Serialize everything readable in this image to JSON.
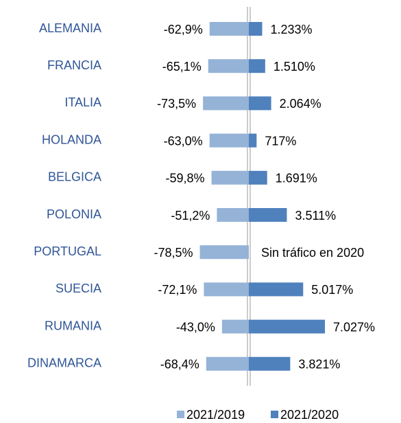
{
  "chart_data": {
    "type": "bar",
    "orientation": "horizontal",
    "categories": [
      "ALEMANIA",
      "FRANCIA",
      "ITALIA",
      "HOLANDA",
      "BELGICA",
      "POLONIA",
      "PORTUGAL",
      "SUECIA",
      "RUMANIA",
      "DINAMARCA"
    ],
    "xlim": [
      -100,
      0
    ],
    "x2lim": [
      0,
      7000
    ],
    "legend": "bottom",
    "series": [
      {
        "name": "2021/2019",
        "color": "#95b3d7",
        "axis": "x",
        "values": [
          -62.9,
          -65.1,
          -73.5,
          -63.0,
          -59.8,
          -51.2,
          -78.5,
          -72.1,
          -43.0,
          -68.4
        ],
        "value_labels": [
          "-62,9%",
          "-65,1%",
          "-73,5%",
          "-63,0%",
          "-59,8%",
          "-51,2%",
          "-78,5%",
          "-72,1%",
          "-43,0%",
          "-68,4%"
        ]
      },
      {
        "name": "2021/2020",
        "color": "#4f81bd",
        "axis": "x2",
        "values": [
          1233,
          1510,
          2064,
          717,
          1691,
          3511,
          null,
          5017,
          7027,
          3821
        ],
        "value_labels": [
          "1.233%",
          "1.510%",
          "2.064%",
          "717%",
          "1.691%",
          "3.511%",
          "Sin tráfico en 2020",
          "5.017%",
          "7.027%",
          "3.821%"
        ]
      }
    ]
  }
}
